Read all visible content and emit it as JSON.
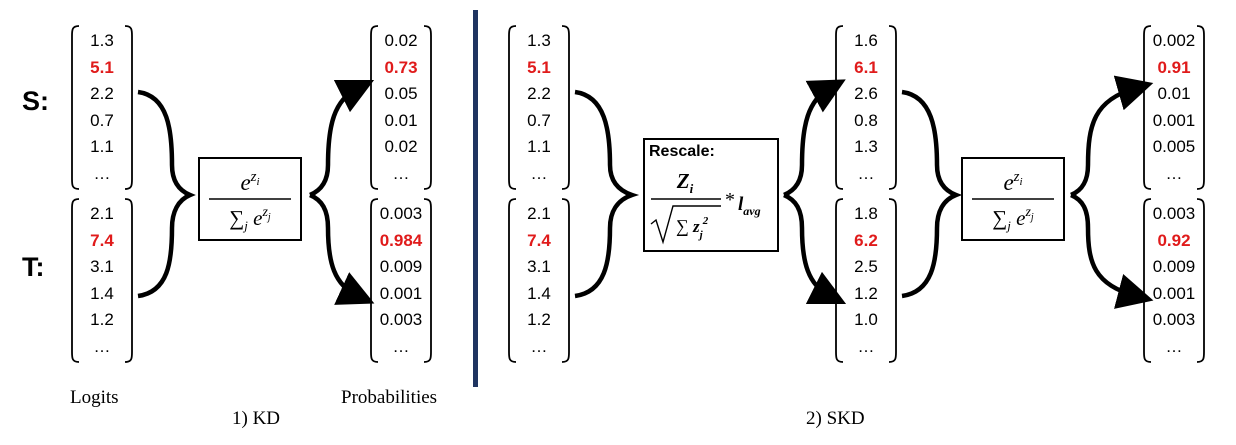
{
  "row_labels": {
    "student": "S:",
    "teacher": "T:"
  },
  "captions": {
    "logits": "Logits",
    "probabilities": "Probabilities",
    "kd": "1) KD",
    "skd": "2) SKD"
  },
  "rescale": {
    "title": "Rescale:"
  },
  "kd": {
    "student_logits": [
      "1.3",
      "5.1",
      "2.2",
      "0.7",
      "1.1",
      "…"
    ],
    "teacher_logits": [
      "2.1",
      "7.4",
      "3.1",
      "1.4",
      "1.2",
      "…"
    ],
    "student_probs": [
      "0.02",
      "0.73",
      "0.05",
      "0.01",
      "0.02",
      "…"
    ],
    "teacher_probs": [
      "0.003",
      "0.984",
      "0.009",
      "0.001",
      "0.003",
      "…"
    ]
  },
  "skd": {
    "student_logits": [
      "1.3",
      "5.1",
      "2.2",
      "0.7",
      "1.1",
      "…"
    ],
    "teacher_logits": [
      "2.1",
      "7.4",
      "3.1",
      "1.4",
      "1.2",
      "…"
    ],
    "student_rescaled": [
      "1.6",
      "6.1",
      "2.6",
      "0.8",
      "1.3",
      "…"
    ],
    "teacher_rescaled": [
      "1.8",
      "6.2",
      "2.5",
      "1.2",
      "1.0",
      "…"
    ],
    "student_probs": [
      "0.002",
      "0.91",
      "0.01",
      "0.001",
      "0.005",
      "…"
    ],
    "teacher_probs": [
      "0.003",
      "0.92",
      "0.009",
      "0.001",
      "0.003",
      "…"
    ]
  },
  "highlight_index": 1,
  "colors": {
    "highlight": "#e01b1b",
    "divider": "#1f3461"
  }
}
